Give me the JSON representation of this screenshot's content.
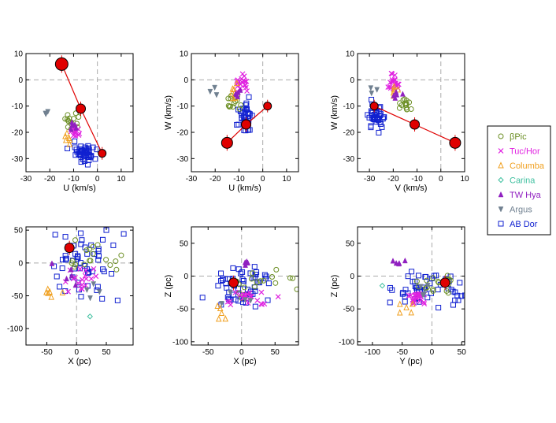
{
  "colors": {
    "bPic": "#6b8e23",
    "TucHor": "#e020e0",
    "Columba": "#f0a020",
    "Carina": "#40c0a0",
    "TWHya": "#9020c0",
    "Argus": "#708090",
    "ABDor": "#1020d0",
    "sun": "#e00000"
  },
  "legend": [
    {
      "key": "bPic",
      "label": "βPic",
      "marker": "circle",
      "color": "#6b8e23"
    },
    {
      "key": "TucHor",
      "label": "Tuc/Hor",
      "marker": "x",
      "color": "#e020e0"
    },
    {
      "key": "Columba",
      "label": "Columba",
      "marker": "tri-up-open",
      "color": "#f0a020"
    },
    {
      "key": "Carina",
      "label": "Carina",
      "marker": "diamond",
      "color": "#40c0a0"
    },
    {
      "key": "TWHya",
      "label": "TW Hya",
      "marker": "tri-up",
      "color": "#9020c0"
    },
    {
      "key": "Argus",
      "label": "Argus",
      "marker": "tri-down",
      "color": "#708090"
    },
    {
      "key": "ABDor",
      "label": "AB Dor",
      "marker": "square",
      "color": "#1020d0"
    }
  ],
  "chart_data": [
    {
      "type": "scatter",
      "panel": "U-V",
      "xlabel": "U (km/s)",
      "ylabel": "",
      "xlim": [
        -30,
        15
      ],
      "ylim": [
        -35,
        10
      ],
      "xticks": [
        -30,
        -20,
        -10,
        0,
        10
      ],
      "yticks": [
        -30,
        -20,
        -10,
        0,
        10
      ],
      "line": {
        "x": [
          -15,
          -7,
          2
        ],
        "y": [
          6,
          -11,
          -28
        ]
      },
      "big": [
        {
          "x": -15,
          "y": 6,
          "s": 8
        },
        {
          "x": -7,
          "y": -11,
          "s": 6
        },
        {
          "x": 2,
          "y": -28,
          "s": 5
        }
      ],
      "clusters": [
        {
          "key": "ABDor",
          "cx": -6,
          "cy": -28,
          "sx": 2.5,
          "sy": 2,
          "n": 45
        },
        {
          "key": "bPic",
          "cx": -10,
          "cy": -16,
          "sx": 2,
          "sy": 1.5,
          "n": 15
        },
        {
          "key": "TucHor",
          "cx": -9,
          "cy": -20,
          "sx": 1,
          "sy": 1,
          "n": 12
        },
        {
          "key": "TWHya",
          "cx": -11,
          "cy": -18,
          "sx": 1,
          "sy": 1,
          "n": 6
        },
        {
          "key": "Columba",
          "cx": -13,
          "cy": -22,
          "sx": 1,
          "sy": 1,
          "n": 6
        },
        {
          "key": "Argus",
          "cx": -22,
          "cy": -13,
          "sx": 0.7,
          "sy": 0.5,
          "n": 3
        }
      ]
    },
    {
      "type": "scatter",
      "panel": "U-W",
      "xlabel": "U (km/s)",
      "ylabel": "W (km/s)",
      "xlim": [
        -30,
        15
      ],
      "ylim": [
        -35,
        10
      ],
      "xticks": [
        -30,
        -20,
        -10,
        0,
        10
      ],
      "yticks": [
        -30,
        -20,
        -10,
        0,
        10
      ],
      "line": {
        "x": [
          -15,
          -7,
          2
        ],
        "y": [
          -24,
          -17,
          -10
        ]
      },
      "big": [
        {
          "x": -15,
          "y": -24,
          "s": 7
        },
        {
          "x": -7,
          "y": -17,
          "s": 6
        },
        {
          "x": 2,
          "y": -10,
          "s": 5
        }
      ],
      "clusters": [
        {
          "key": "ABDor",
          "cx": -7,
          "cy": -14,
          "sx": 1.5,
          "sy": 3,
          "n": 40
        },
        {
          "key": "TucHor",
          "cx": -9,
          "cy": -1,
          "sx": 1.5,
          "sy": 1.5,
          "n": 20
        },
        {
          "key": "bPic",
          "cx": -10,
          "cy": -9,
          "sx": 2.5,
          "sy": 1.5,
          "n": 15
        },
        {
          "key": "Columba",
          "cx": -12,
          "cy": -5,
          "sx": 1,
          "sy": 1.5,
          "n": 6
        },
        {
          "key": "TWHya",
          "cx": -10,
          "cy": -6,
          "sx": 1,
          "sy": 1,
          "n": 5
        },
        {
          "key": "Argus",
          "cx": -21,
          "cy": -5,
          "sx": 1.5,
          "sy": 1.5,
          "n": 3
        }
      ]
    },
    {
      "type": "scatter",
      "panel": "V-W",
      "xlabel": "V (km/s)",
      "ylabel": "W (km/s)",
      "xlim": [
        -35,
        10
      ],
      "ylim": [
        -35,
        10
      ],
      "xticks": [
        -30,
        -20,
        -10,
        0,
        10
      ],
      "yticks": [
        -30,
        -20,
        -10,
        0,
        10
      ],
      "line": {
        "x": [
          -28,
          -11,
          6
        ],
        "y": [
          -10,
          -17,
          -24
        ]
      },
      "big": [
        {
          "x": -28,
          "y": -10,
          "s": 5
        },
        {
          "x": -11,
          "y": -17,
          "s": 6
        },
        {
          "x": 6,
          "y": -24,
          "s": 7
        }
      ],
      "clusters": [
        {
          "key": "ABDor",
          "cx": -27,
          "cy": -14,
          "sx": 1.5,
          "sy": 2.5,
          "n": 40
        },
        {
          "key": "TucHor",
          "cx": -20,
          "cy": -1,
          "sx": 1.5,
          "sy": 1.5,
          "n": 20
        },
        {
          "key": "bPic",
          "cx": -15,
          "cy": -9,
          "sx": 1.5,
          "sy": 1.5,
          "n": 15
        },
        {
          "key": "Columba",
          "cx": -19,
          "cy": -5,
          "sx": 1,
          "sy": 1.5,
          "n": 6
        },
        {
          "key": "TWHya",
          "cx": -18,
          "cy": -6,
          "sx": 1,
          "sy": 1,
          "n": 5
        },
        {
          "key": "Argus",
          "cx": -29,
          "cy": -5,
          "sx": 1,
          "sy": 1.5,
          "n": 3
        }
      ]
    },
    {
      "type": "scatter",
      "panel": "X-Y",
      "xlabel": "X (pc)",
      "ylabel": "",
      "xlim": [
        -85,
        95
      ],
      "ylim": [
        -125,
        55
      ],
      "xticks": [
        -50,
        0,
        50
      ],
      "yticks": [
        -100,
        -50,
        0,
        50
      ],
      "big": [
        {
          "x": -12,
          "y": 23,
          "s": 6
        }
      ],
      "clusters": [
        {
          "key": "ABDor",
          "cx": 5,
          "cy": 0,
          "sx": 30,
          "sy": 28,
          "n": 55
        },
        {
          "key": "bPic",
          "cx": 20,
          "cy": 5,
          "sx": 30,
          "sy": 15,
          "n": 18
        },
        {
          "key": "TucHor",
          "cx": 5,
          "cy": -28,
          "sx": 15,
          "sy": 12,
          "n": 18
        },
        {
          "key": "Columba",
          "cx": -35,
          "cy": -48,
          "sx": 8,
          "sy": 6,
          "n": 6
        },
        {
          "key": "Carina",
          "cx": 15,
          "cy": -80,
          "sx": 3,
          "sy": 3,
          "n": 1
        },
        {
          "key": "TWHya",
          "cx": -10,
          "cy": -20,
          "sx": 20,
          "sy": 15,
          "n": 5
        },
        {
          "key": "Argus",
          "cx": 30,
          "cy": -45,
          "sx": 10,
          "sy": 10,
          "n": 4
        }
      ]
    },
    {
      "type": "scatter",
      "panel": "X-Z",
      "xlabel": "X (pc)",
      "ylabel": "Z (pc)",
      "xlim": [
        -75,
        85
      ],
      "ylim": [
        -105,
        75
      ],
      "xticks": [
        -50,
        0,
        50
      ],
      "yticks": [
        -100,
        -50,
        0,
        50
      ],
      "big": [
        {
          "x": -12,
          "y": -10,
          "s": 6
        }
      ],
      "clusters": [
        {
          "key": "ABDor",
          "cx": 0,
          "cy": -15,
          "sx": 25,
          "sy": 15,
          "n": 55
        },
        {
          "key": "bPic",
          "cx": 25,
          "cy": -10,
          "sx": 25,
          "sy": 10,
          "n": 18
        },
        {
          "key": "TucHor",
          "cx": 10,
          "cy": -35,
          "sx": 20,
          "sy": 8,
          "n": 22
        },
        {
          "key": "Columba",
          "cx": -30,
          "cy": -55,
          "sx": 5,
          "sy": 6,
          "n": 5
        },
        {
          "key": "TWHya",
          "cx": 8,
          "cy": 20,
          "sx": 3,
          "sy": 2,
          "n": 5
        },
        {
          "key": "Argus",
          "cx": 10,
          "cy": -30,
          "sx": 20,
          "sy": 10,
          "n": 4
        }
      ]
    },
    {
      "type": "scatter",
      "panel": "Y-Z",
      "xlabel": "Y (pc)",
      "ylabel": "Z (pc)",
      "xlim": [
        -125,
        55
      ],
      "ylim": [
        -105,
        75
      ],
      "xticks": [
        -100,
        -50,
        0,
        50
      ],
      "yticks": [
        -100,
        -50,
        0,
        50
      ],
      "big": [
        {
          "x": 22,
          "y": -10,
          "s": 6
        }
      ],
      "clusters": [
        {
          "key": "ABDor",
          "cx": 0,
          "cy": -20,
          "sx": 28,
          "sy": 15,
          "n": 55
        },
        {
          "key": "bPic",
          "cx": 15,
          "cy": -10,
          "sx": 20,
          "sy": 10,
          "n": 18
        },
        {
          "key": "TucHor",
          "cx": -25,
          "cy": -35,
          "sx": 8,
          "sy": 6,
          "n": 22
        },
        {
          "key": "Columba",
          "cx": -40,
          "cy": -50,
          "sx": 10,
          "sy": 5,
          "n": 5
        },
        {
          "key": "Carina",
          "cx": -85,
          "cy": -12,
          "sx": 3,
          "sy": 3,
          "n": 1
        },
        {
          "key": "TWHya",
          "cx": -55,
          "cy": 22,
          "sx": 8,
          "sy": 3,
          "n": 5
        },
        {
          "key": "Argus",
          "cx": -20,
          "cy": -25,
          "sx": 15,
          "sy": 10,
          "n": 4
        }
      ]
    }
  ]
}
